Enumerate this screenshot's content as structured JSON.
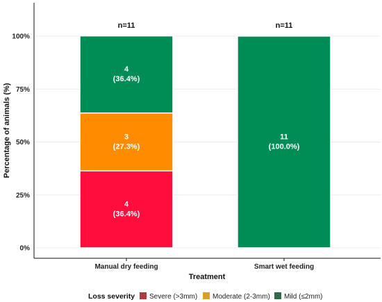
{
  "chart_data": {
    "type": "bar",
    "stacked": true,
    "percent": true,
    "categories": [
      "Manual dry feeding",
      "Smart wet feeding"
    ],
    "n_labels": [
      "n=11",
      "n=11"
    ],
    "series": [
      {
        "name": "Severe (>3mm)",
        "color": "#ff0d3d",
        "swatch": "#b03a3e",
        "values": [
          36.4,
          0
        ],
        "counts": [
          4,
          0
        ],
        "labels": [
          "4\n(36.4%)",
          ""
        ]
      },
      {
        "name": "Moderate (2-3mm)",
        "color": "#ff8c00",
        "swatch": "#d9a021",
        "values": [
          27.3,
          0
        ],
        "counts": [
          3,
          0
        ],
        "labels": [
          "3\n(27.3%)",
          ""
        ]
      },
      {
        "name": "Mild (≤2mm)",
        "color": "#008c55",
        "swatch": "#2e6b4a",
        "values": [
          36.4,
          100.0
        ],
        "counts": [
          4,
          11
        ],
        "labels": [
          "4\n(36.4%)",
          "11\n(100.0%)"
        ]
      }
    ],
    "xlabel": "Treatment",
    "ylabel": "Percentage of animals (%)",
    "ylim": [
      0,
      100
    ],
    "yticks": [
      "0%",
      "25%",
      "50%",
      "75%",
      "100%"
    ],
    "ytick_values": [
      0,
      25,
      50,
      75,
      100
    ],
    "grid": true,
    "legend": {
      "title": "Loss severity",
      "position": "bottom"
    }
  }
}
